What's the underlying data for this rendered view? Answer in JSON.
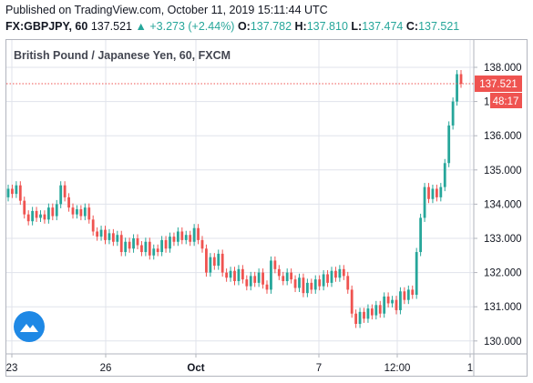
{
  "header": {
    "published": "Published on TradingView.com, October 11, 2019 15:11:44 UTC",
    "symbol": "FX:GBPJPY, 60",
    "last": "137.521",
    "change": "+3.273 (+2.44%)",
    "o_label": "O:",
    "o_val": "137.782",
    "h_label": "H:",
    "h_val": "137.810",
    "l_label": "L:",
    "l_val": "137.474",
    "c_label": "C:",
    "c_val": "137.521"
  },
  "chart_title": "British Pound / Japanese Yen, 60, FXCM",
  "price_badge": "137.521",
  "countdown_badge": "48:17",
  "colors": {
    "up": "#26a69a",
    "down": "#ef5350",
    "grid": "#e0e3eb",
    "axis": "#b2b5be",
    "logo": "#1e88e5"
  },
  "chart_data": {
    "type": "candlestick",
    "y_ticks": [
      "130.000",
      "131.000",
      "132.000",
      "133.000",
      "134.000",
      "135.000",
      "136.000",
      "137.000",
      "138.000"
    ],
    "x_ticks": [
      "23",
      "26",
      "Oct",
      "7",
      "12:00",
      "1"
    ],
    "ylim": [
      129.75,
      138.25
    ],
    "last_price": 137.521,
    "series": [
      {
        "o": 134.2,
        "c": 134.45
      },
      {
        "o": 134.45,
        "c": 134.3
      },
      {
        "o": 134.3,
        "c": 134.55
      },
      {
        "o": 134.55,
        "c": 134.1
      },
      {
        "o": 134.1,
        "c": 133.7
      },
      {
        "o": 133.7,
        "c": 133.5
      },
      {
        "o": 133.5,
        "c": 133.8
      },
      {
        "o": 133.8,
        "c": 133.6
      },
      {
        "o": 133.6,
        "c": 133.7
      },
      {
        "o": 133.7,
        "c": 133.55
      },
      {
        "o": 133.55,
        "c": 133.9
      },
      {
        "o": 133.9,
        "c": 133.65
      },
      {
        "o": 133.65,
        "c": 134.0
      },
      {
        "o": 134.0,
        "c": 134.55
      },
      {
        "o": 134.55,
        "c": 134.2
      },
      {
        "o": 134.2,
        "c": 133.9
      },
      {
        "o": 133.9,
        "c": 133.7
      },
      {
        "o": 133.7,
        "c": 133.85
      },
      {
        "o": 133.85,
        "c": 133.65
      },
      {
        "o": 133.65,
        "c": 133.9
      },
      {
        "o": 133.9,
        "c": 133.55
      },
      {
        "o": 133.55,
        "c": 133.2
      },
      {
        "o": 133.2,
        "c": 133.05
      },
      {
        "o": 133.05,
        "c": 133.25
      },
      {
        "o": 133.25,
        "c": 132.95
      },
      {
        "o": 132.95,
        "c": 133.15
      },
      {
        "o": 133.15,
        "c": 132.9
      },
      {
        "o": 132.9,
        "c": 133.1
      },
      {
        "o": 133.1,
        "c": 132.6
      },
      {
        "o": 132.6,
        "c": 132.9
      },
      {
        "o": 132.9,
        "c": 132.7
      },
      {
        "o": 132.7,
        "c": 133.0
      },
      {
        "o": 133.0,
        "c": 132.8
      },
      {
        "o": 132.8,
        "c": 132.6
      },
      {
        "o": 132.6,
        "c": 132.9
      },
      {
        "o": 132.9,
        "c": 132.5
      },
      {
        "o": 132.5,
        "c": 132.7
      },
      {
        "o": 132.7,
        "c": 132.6
      },
      {
        "o": 132.6,
        "c": 132.95
      },
      {
        "o": 132.95,
        "c": 132.7
      },
      {
        "o": 132.7,
        "c": 133.05
      },
      {
        "o": 133.05,
        "c": 132.9
      },
      {
        "o": 132.9,
        "c": 133.2
      },
      {
        "o": 133.2,
        "c": 132.95
      },
      {
        "o": 132.95,
        "c": 133.1
      },
      {
        "o": 133.1,
        "c": 132.9
      },
      {
        "o": 132.9,
        "c": 133.3
      },
      {
        "o": 133.3,
        "c": 132.95
      },
      {
        "o": 132.95,
        "c": 132.7
      },
      {
        "o": 132.7,
        "c": 132.0
      },
      {
        "o": 132.0,
        "c": 132.45
      },
      {
        "o": 132.45,
        "c": 132.2
      },
      {
        "o": 132.2,
        "c": 132.55
      },
      {
        "o": 132.55,
        "c": 132.0
      },
      {
        "o": 132.0,
        "c": 131.85
      },
      {
        "o": 131.85,
        "c": 132.05
      },
      {
        "o": 132.05,
        "c": 131.75
      },
      {
        "o": 131.75,
        "c": 132.1
      },
      {
        "o": 132.1,
        "c": 131.8
      },
      {
        "o": 131.8,
        "c": 131.6
      },
      {
        "o": 131.6,
        "c": 131.9
      },
      {
        "o": 131.9,
        "c": 131.7
      },
      {
        "o": 131.7,
        "c": 132.0
      },
      {
        "o": 132.0,
        "c": 131.65
      },
      {
        "o": 131.65,
        "c": 131.5
      },
      {
        "o": 131.5,
        "c": 132.35
      },
      {
        "o": 132.35,
        "c": 132.1
      },
      {
        "o": 132.1,
        "c": 131.9
      },
      {
        "o": 131.9,
        "c": 131.75
      },
      {
        "o": 131.75,
        "c": 132.0
      },
      {
        "o": 132.0,
        "c": 131.8
      },
      {
        "o": 131.8,
        "c": 131.55
      },
      {
        "o": 131.55,
        "c": 131.85
      },
      {
        "o": 131.85,
        "c": 131.4
      },
      {
        "o": 131.4,
        "c": 131.7
      },
      {
        "o": 131.7,
        "c": 131.5
      },
      {
        "o": 131.5,
        "c": 131.8
      },
      {
        "o": 131.8,
        "c": 131.6
      },
      {
        "o": 131.6,
        "c": 131.95
      },
      {
        "o": 131.95,
        "c": 131.7
      },
      {
        "o": 131.7,
        "c": 132.05
      },
      {
        "o": 132.05,
        "c": 131.85
      },
      {
        "o": 131.85,
        "c": 132.1
      },
      {
        "o": 132.1,
        "c": 131.9
      },
      {
        "o": 131.9,
        "c": 131.5
      },
      {
        "o": 131.5,
        "c": 130.8
      },
      {
        "o": 130.8,
        "c": 130.5
      },
      {
        "o": 130.5,
        "c": 130.85
      },
      {
        "o": 130.85,
        "c": 130.65
      },
      {
        "o": 130.65,
        "c": 130.95
      },
      {
        "o": 130.95,
        "c": 130.75
      },
      {
        "o": 130.75,
        "c": 131.05
      },
      {
        "o": 131.05,
        "c": 130.8
      },
      {
        "o": 130.8,
        "c": 131.3
      },
      {
        "o": 131.3,
        "c": 131.1
      },
      {
        "o": 131.1,
        "c": 131.2
      },
      {
        "o": 131.2,
        "c": 130.9
      },
      {
        "o": 130.9,
        "c": 131.45
      },
      {
        "o": 131.45,
        "c": 131.2
      },
      {
        "o": 131.2,
        "c": 131.5
      },
      {
        "o": 131.5,
        "c": 131.35
      },
      {
        "o": 131.35,
        "c": 132.6
      },
      {
        "o": 132.6,
        "c": 133.6
      },
      {
        "o": 133.6,
        "c": 134.5
      },
      {
        "o": 134.5,
        "c": 134.15
      },
      {
        "o": 134.15,
        "c": 134.45
      },
      {
        "o": 134.45,
        "c": 134.2
      },
      {
        "o": 134.2,
        "c": 134.5
      },
      {
        "o": 134.5,
        "c": 135.2
      },
      {
        "o": 135.2,
        "c": 136.3
      },
      {
        "o": 136.3,
        "c": 137.0
      },
      {
        "o": 137.0,
        "c": 137.8
      },
      {
        "o": 137.8,
        "c": 137.521
      }
    ]
  }
}
